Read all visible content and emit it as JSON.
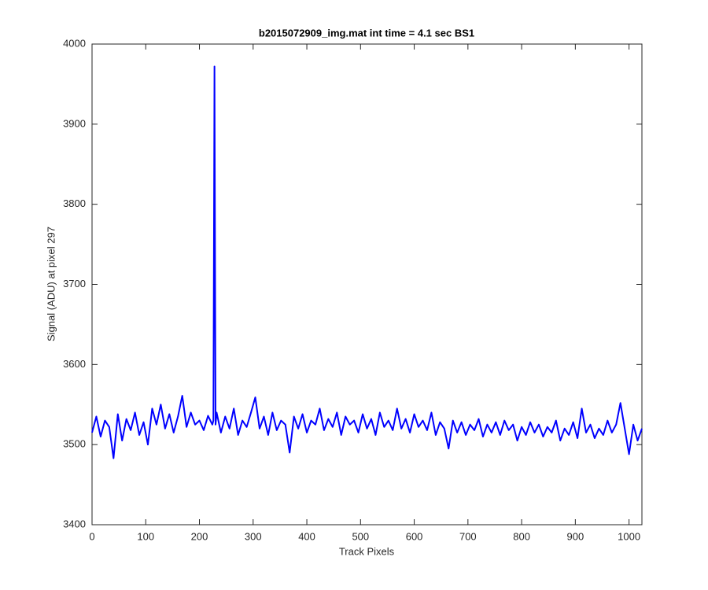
{
  "chart_data": {
    "type": "line",
    "title": "b2015072909_img.mat int time = 4.1 sec   BS1",
    "x_label": "Track Pixels",
    "y_label": "Signal (ADU) at pixel 297",
    "xlim": [
      0,
      1024
    ],
    "ylim": [
      3400,
      4000
    ],
    "xticks": [
      0,
      100,
      200,
      300,
      400,
      500,
      600,
      700,
      800,
      900,
      1000
    ],
    "yticks": [
      3400,
      3500,
      3600,
      3700,
      3800,
      3900,
      4000
    ],
    "grid": false,
    "x": [
      0,
      8,
      16,
      24,
      32,
      40,
      48,
      56,
      64,
      72,
      80,
      88,
      96,
      104,
      112,
      120,
      128,
      136,
      144,
      152,
      160,
      168,
      176,
      184,
      192,
      200,
      208,
      216,
      224,
      226,
      228,
      230,
      232,
      240,
      248,
      256,
      264,
      272,
      280,
      288,
      296,
      304,
      312,
      320,
      328,
      336,
      344,
      352,
      360,
      368,
      376,
      384,
      392,
      400,
      408,
      416,
      424,
      432,
      440,
      448,
      456,
      464,
      472,
      480,
      488,
      496,
      504,
      512,
      520,
      528,
      536,
      544,
      552,
      560,
      568,
      576,
      584,
      592,
      600,
      608,
      616,
      624,
      632,
      640,
      648,
      656,
      664,
      672,
      680,
      688,
      696,
      704,
      712,
      720,
      728,
      736,
      744,
      752,
      760,
      768,
      776,
      784,
      792,
      800,
      808,
      816,
      824,
      832,
      840,
      848,
      856,
      864,
      872,
      880,
      888,
      896,
      904,
      912,
      920,
      928,
      936,
      944,
      952,
      960,
      968,
      976,
      984,
      992,
      1000,
      1008,
      1016,
      1024
    ],
    "series": [
      {
        "color": "#0000ff",
        "values": [
          3515,
          3535,
          3510,
          3530,
          3522,
          3483,
          3538,
          3505,
          3532,
          3518,
          3540,
          3512,
          3528,
          3500,
          3545,
          3525,
          3550,
          3520,
          3538,
          3515,
          3535,
          3561,
          3522,
          3540,
          3525,
          3530,
          3518,
          3536,
          3525,
          3530,
          3972,
          3525,
          3540,
          3515,
          3535,
          3520,
          3545,
          3512,
          3530,
          3522,
          3540,
          3559,
          3520,
          3535,
          3512,
          3540,
          3518,
          3530,
          3525,
          3490,
          3535,
          3520,
          3538,
          3515,
          3530,
          3525,
          3545,
          3518,
          3532,
          3522,
          3540,
          3512,
          3535,
          3525,
          3530,
          3515,
          3538,
          3520,
          3532,
          3512,
          3540,
          3522,
          3530,
          3518,
          3545,
          3520,
          3532,
          3515,
          3538,
          3522,
          3530,
          3518,
          3540,
          3512,
          3528,
          3520,
          3495,
          3530,
          3515,
          3528,
          3512,
          3525,
          3518,
          3532,
          3510,
          3525,
          3515,
          3528,
          3512,
          3530,
          3518,
          3525,
          3505,
          3522,
          3512,
          3528,
          3515,
          3525,
          3510,
          3522,
          3515,
          3530,
          3505,
          3520,
          3512,
          3528,
          3508,
          3545,
          3515,
          3525,
          3508,
          3520,
          3512,
          3530,
          3515,
          3525,
          3552,
          3520,
          3488,
          3525,
          3505,
          3520
        ]
      }
    ]
  }
}
